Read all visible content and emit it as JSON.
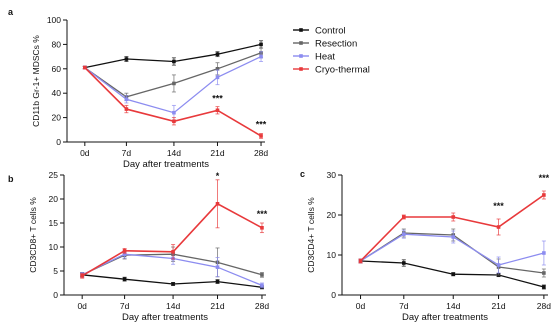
{
  "colors": {
    "Control": "#111111",
    "Resection": "#666666",
    "Heat": "#8c8cf0",
    "Cryo-thermal": "#e8393b"
  },
  "legend": [
    "Control",
    "Resection",
    "Heat",
    "Cryo-thermal"
  ],
  "chart_data": [
    {
      "panel": "a",
      "type": "line",
      "x": [
        "0d",
        "7d",
        "14d",
        "21d",
        "28d"
      ],
      "xlabel": "Day after treatments",
      "ylabel": "CD11b Gr-1+ MDSCs %",
      "ylim": [
        0,
        100
      ],
      "yticks": [
        0,
        20,
        40,
        60,
        80,
        100
      ],
      "series": [
        {
          "name": "Control",
          "values": [
            61,
            68,
            66,
            72,
            80
          ],
          "err": [
            1,
            2,
            3,
            2,
            3
          ]
        },
        {
          "name": "Resection",
          "values": [
            61,
            37,
            48,
            60,
            73
          ],
          "err": [
            1,
            3,
            7,
            5,
            4
          ]
        },
        {
          "name": "Heat",
          "values": [
            61,
            35,
            24,
            53,
            70
          ],
          "err": [
            1,
            3,
            6,
            6,
            4
          ]
        },
        {
          "name": "Cryo-thermal",
          "values": [
            61,
            27,
            17,
            26,
            5
          ],
          "err": [
            1,
            3,
            3,
            3,
            2
          ]
        }
      ],
      "annotations": [
        {
          "x": "21d",
          "y": 33,
          "text": "***"
        },
        {
          "x": "28d",
          "y": 12,
          "text": "***"
        }
      ]
    },
    {
      "panel": "b",
      "type": "line",
      "x": [
        "0d",
        "7d",
        "14d",
        "21d",
        "28d"
      ],
      "xlabel": "Day after treatments",
      "ylabel": "CD3CD8+ T cells %",
      "ylim": [
        0,
        25
      ],
      "yticks": [
        0,
        5,
        10,
        15,
        20,
        25
      ],
      "series": [
        {
          "name": "Control",
          "values": [
            4.2,
            3.3,
            2.3,
            2.8,
            1.6
          ],
          "err": [
            0.4,
            0.4,
            0.3,
            0.4,
            0.3
          ]
        },
        {
          "name": "Resection",
          "values": [
            4.2,
            8.3,
            8.5,
            6.8,
            4.2
          ],
          "err": [
            0.5,
            0.8,
            1.5,
            3.0,
            0.5
          ]
        },
        {
          "name": "Heat",
          "values": [
            4.2,
            8.5,
            7.6,
            5.8,
            2.0
          ],
          "err": [
            0.5,
            0.8,
            1.2,
            2.0,
            0.5
          ]
        },
        {
          "name": "Cryo-thermal",
          "values": [
            4.0,
            9.2,
            9.0,
            19.0,
            14.0
          ],
          "err": [
            0.5,
            0.5,
            1.5,
            5.0,
            1.0
          ]
        }
      ],
      "annotations": [
        {
          "x": "21d",
          "y": 24.2,
          "text": "*"
        },
        {
          "x": "28d",
          "y": 16.3,
          "text": "***"
        }
      ]
    },
    {
      "panel": "c",
      "type": "line",
      "x": [
        "0d",
        "7d",
        "14d",
        "21d",
        "28d"
      ],
      "xlabel": "Day after treatments",
      "ylabel": "CD3CD4+ T cells %",
      "ylim": [
        0,
        30
      ],
      "yticks": [
        0,
        10,
        20,
        30
      ],
      "series": [
        {
          "name": "Control",
          "values": [
            8.5,
            8.0,
            5.2,
            5.0,
            2.0
          ],
          "err": [
            0.5,
            0.8,
            0.4,
            0.4,
            0.5
          ]
        },
        {
          "name": "Resection",
          "values": [
            8.5,
            15.5,
            15.0,
            7.0,
            5.5
          ],
          "err": [
            0.5,
            1.0,
            1.5,
            2.0,
            1.0
          ]
        },
        {
          "name": "Heat",
          "values": [
            8.5,
            15.2,
            14.5,
            7.5,
            10.5
          ],
          "err": [
            0.5,
            1.0,
            1.5,
            2.0,
            3.0
          ]
        },
        {
          "name": "Cryo-thermal",
          "values": [
            8.5,
            19.5,
            19.5,
            17.0,
            25.0
          ],
          "err": [
            0.5,
            0.5,
            1.0,
            2.0,
            1.0
          ]
        }
      ],
      "annotations": [
        {
          "x": "21d",
          "y": 21.5,
          "text": "***"
        },
        {
          "x": "28d",
          "y": 28.5,
          "text": "***"
        }
      ]
    }
  ]
}
